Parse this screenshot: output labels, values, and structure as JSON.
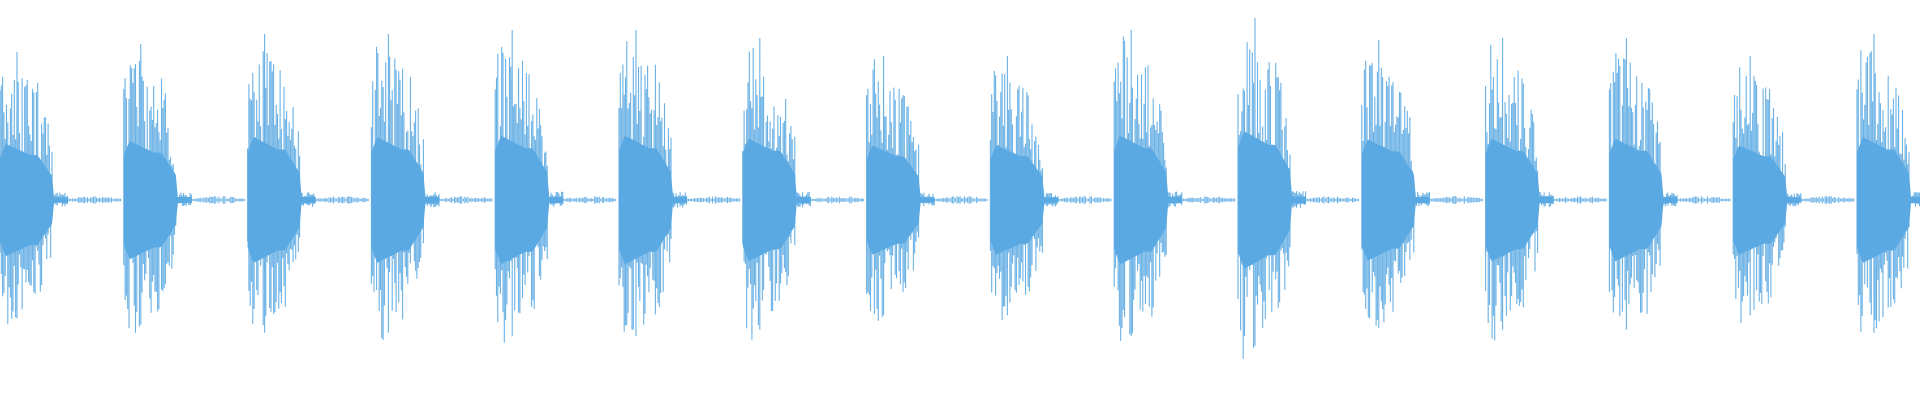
{
  "chart_data": {
    "type": "waveform",
    "color": "#5aa9e2",
    "ylim": [
      -1,
      1
    ],
    "values": [
      0.74,
      0.78,
      0.83,
      0.83,
      0.85,
      0.85,
      0.81,
      0.72,
      0.72,
      0.85,
      0.91,
      0.8,
      0.81,
      0.81,
      0.72,
      0.83
    ]
  }
}
